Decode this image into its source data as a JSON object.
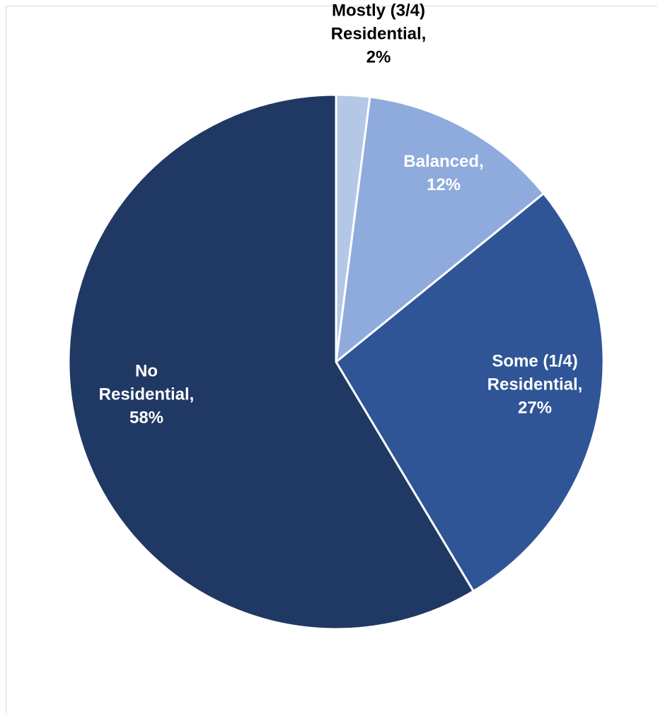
{
  "chart_data": {
    "type": "pie",
    "title": "",
    "slices": [
      {
        "name": "Mostly (3/4) Residential",
        "value": 2,
        "label_lines": [
          "Mostly (3/4)",
          "Residential,",
          "2%"
        ],
        "color": "#b4c7e7",
        "label_color": "#000000"
      },
      {
        "name": "Balanced",
        "value": 12,
        "label_lines": [
          "Balanced,",
          "12%"
        ],
        "color": "#8faadc",
        "label_color": "#ffffff"
      },
      {
        "name": "Some (1/4) Residential",
        "value": 27,
        "label_lines": [
          "Some (1/4)",
          "Residential,",
          "27%"
        ],
        "color": "#2f5597",
        "label_color": "#ffffff"
      },
      {
        "name": "No Residential",
        "value": 58,
        "label_lines": [
          "No",
          "Residential,",
          "58%"
        ],
        "color": "#203864",
        "label_color": "#ffffff"
      }
    ],
    "start_angle_deg": 0,
    "direction": "clockwise",
    "legend": "none",
    "data_labels": "category-and-percent"
  }
}
